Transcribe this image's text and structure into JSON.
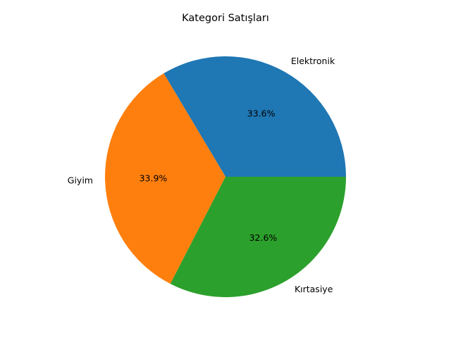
{
  "chart_data": {
    "type": "pie",
    "title": "Kategori Satışları",
    "categories": [
      "Elektronik",
      "Giyim",
      "Kırtasiye"
    ],
    "values": [
      33.6,
      33.9,
      32.6
    ],
    "percent_labels": [
      "33.6%",
      "33.9%",
      "32.6%"
    ],
    "colors": [
      "#1f77b4",
      "#ff7f0e",
      "#2ca02c"
    ],
    "start_angle_deg": 0,
    "direction": "counterclockwise",
    "legend": "none"
  }
}
